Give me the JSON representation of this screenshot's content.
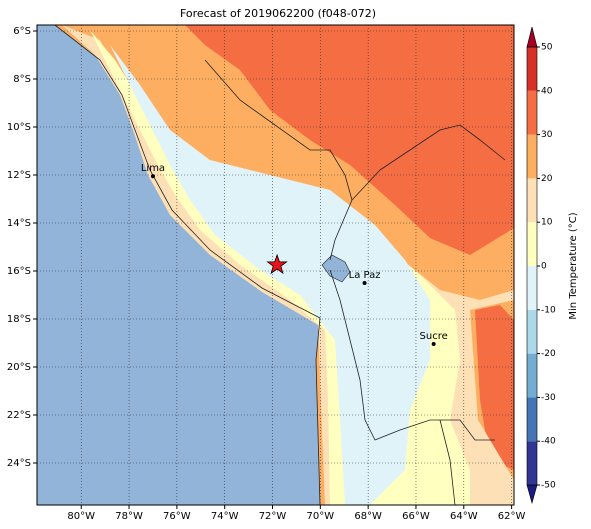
{
  "chart_data": {
    "type": "map",
    "title": "Forecast of 2019062200 (f048-072)",
    "xlim": [
      -81.85,
      -61.9
    ],
    "ylim": [
      -25.75,
      -5.75
    ],
    "xticks": [
      {
        "value": -80,
        "label": "80°W"
      },
      {
        "value": -78,
        "label": "78°W"
      },
      {
        "value": -76,
        "label": "76°W"
      },
      {
        "value": -74,
        "label": "74°W"
      },
      {
        "value": -72,
        "label": "72°W"
      },
      {
        "value": -70,
        "label": "70°W"
      },
      {
        "value": -68,
        "label": "68°W"
      },
      {
        "value": -66,
        "label": "66°W"
      },
      {
        "value": -64,
        "label": "64°W"
      },
      {
        "value": -62,
        "label": "62°W"
      }
    ],
    "yticks": [
      {
        "value": -6,
        "label": "6°S"
      },
      {
        "value": -8,
        "label": "8°S"
      },
      {
        "value": -10,
        "label": "10°S"
      },
      {
        "value": -12,
        "label": "12°S"
      },
      {
        "value": -14,
        "label": "14°S"
      },
      {
        "value": -16,
        "label": "16°S"
      },
      {
        "value": -18,
        "label": "18°S"
      },
      {
        "value": -20,
        "label": "20°S"
      },
      {
        "value": -22,
        "label": "22°S"
      },
      {
        "value": -24,
        "label": "24°S"
      }
    ],
    "grid": true,
    "cities": [
      {
        "name": "Lima",
        "lon": -77.0,
        "lat": -12.05
      },
      {
        "name": "La Paz",
        "lon": -68.15,
        "lat": -16.5
      },
      {
        "name": "Sucre",
        "lon": -65.26,
        "lat": -19.04
      }
    ],
    "marker": {
      "lon": -71.81,
      "lat": -15.75,
      "color": "#e8141c"
    },
    "colorbar": {
      "label": "Min Temperature (°C)",
      "ticks": [
        -50,
        -40,
        -30,
        -20,
        -10,
        0,
        10,
        20,
        30,
        40,
        50
      ],
      "colors": [
        "#313695",
        "#4575b4",
        "#74add1",
        "#abd9e9",
        "#e0f3f8",
        "#ffffbf",
        "#fee0b6",
        "#fdae61",
        "#f46d43",
        "#d73027"
      ],
      "under_color": "#1a1a80",
      "over_color": "#a50026"
    }
  }
}
